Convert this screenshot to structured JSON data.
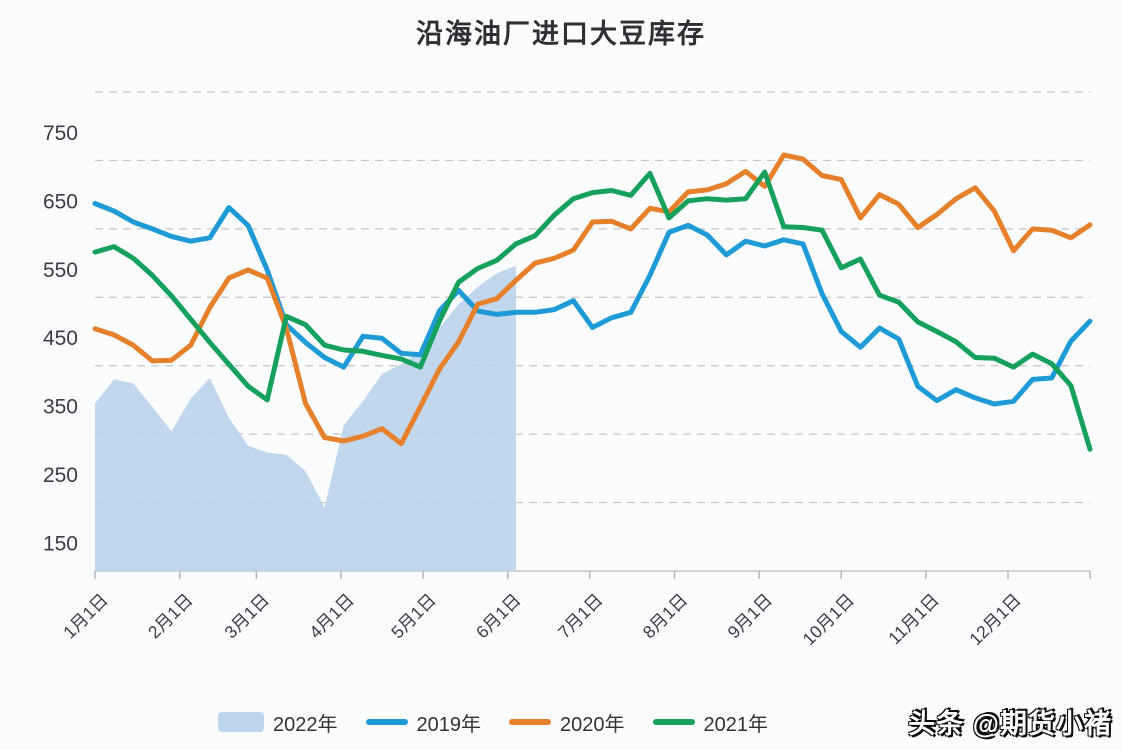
{
  "title": "沿海油厂进口大豆库存",
  "watermark": "头条 @期货小褚",
  "colors": {
    "area_2022": "#bdd5ec",
    "line_2019": "#1e9bd7",
    "line_2020": "#e6802b",
    "line_2021": "#15a15c",
    "gridline": "#c7c7c7",
    "axis_text": "#3c3c46"
  },
  "chart_data": {
    "type": "line",
    "title": "沿海油厂进口大豆库存",
    "legend_position": "bottom",
    "grid": "horizontal-dashed",
    "y_axis": {
      "min": 150,
      "max": 850,
      "tick_values": [
        150,
        250,
        350,
        450,
        550,
        650,
        750
      ]
    },
    "x_ticks": {
      "labels": [
        "1月1日",
        "2月1日",
        "3月1日",
        "4月1日",
        "5月1日",
        "6月1日",
        "7月1日",
        "8月1日",
        "9月1日",
        "10月1日",
        "11月1日",
        "12月1日"
      ],
      "days": [
        0,
        31,
        59,
        90,
        120,
        151,
        181,
        212,
        243,
        273,
        304,
        334
      ],
      "total_days": 364
    },
    "series": [
      {
        "name": "2022年",
        "style": "area",
        "color": "#bdd5ec",
        "days": [
          0,
          7,
          14,
          21,
          28,
          35,
          42,
          49,
          56,
          63,
          70,
          77,
          84,
          91,
          98,
          105,
          112,
          119,
          126,
          133,
          140,
          147,
          154
        ],
        "values": [
          395,
          430,
          424,
          390,
          354,
          402,
          432,
          374,
          333,
          323,
          320,
          296,
          243,
          363,
          398,
          438,
          452,
          472,
          505,
          540,
          565,
          585,
          596
        ]
      },
      {
        "name": "2019年",
        "style": "line",
        "color": "#1e9bd7",
        "days": [
          0,
          7,
          14,
          21,
          28,
          35,
          42,
          49,
          56,
          63,
          70,
          77,
          84,
          91,
          98,
          105,
          112,
          119,
          126,
          133,
          140,
          147,
          154,
          161,
          168,
          175,
          182,
          189,
          196,
          203,
          210,
          217,
          224,
          231,
          238,
          245,
          252,
          259,
          266,
          273,
          280,
          287,
          294,
          301,
          308,
          315,
          322,
          329,
          336,
          343,
          350,
          357,
          364
        ],
        "values": [
          687,
          676,
          660,
          650,
          639,
          632,
          637,
          681,
          655,
          590,
          510,
          484,
          462,
          448,
          493,
          490,
          468,
          466,
          530,
          560,
          530,
          525,
          528,
          528,
          532,
          545,
          506,
          520,
          528,
          582,
          645,
          655,
          641,
          612,
          632,
          625,
          634,
          628,
          555,
          500,
          477,
          505,
          489,
          420,
          399,
          415,
          403,
          394,
          398,
          430,
          432,
          486,
          515
        ]
      },
      {
        "name": "2020年",
        "style": "line",
        "color": "#e6802b",
        "days": [
          0,
          7,
          14,
          21,
          28,
          35,
          42,
          49,
          56,
          63,
          70,
          77,
          84,
          91,
          98,
          105,
          112,
          119,
          126,
          133,
          140,
          147,
          154,
          161,
          168,
          175,
          182,
          189,
          196,
          203,
          210,
          217,
          224,
          231,
          238,
          245,
          252,
          259,
          266,
          273,
          280,
          287,
          294,
          301,
          308,
          315,
          322,
          329,
          336,
          343,
          350,
          357,
          364
        ],
        "values": [
          504,
          495,
          480,
          457,
          458,
          480,
          535,
          578,
          590,
          578,
          505,
          395,
          345,
          340,
          347,
          358,
          336,
          390,
          445,
          485,
          540,
          548,
          575,
          600,
          607,
          619,
          660,
          661,
          650,
          680,
          675,
          704,
          707,
          716,
          734,
          712,
          758,
          752,
          728,
          722,
          666,
          700,
          686,
          652,
          671,
          694,
          710,
          676,
          618,
          650,
          648,
          637,
          656
        ]
      },
      {
        "name": "2021年",
        "style": "line",
        "color": "#15a15c",
        "days": [
          0,
          7,
          14,
          21,
          28,
          35,
          42,
          49,
          56,
          63,
          70,
          77,
          84,
          91,
          98,
          105,
          112,
          119,
          126,
          133,
          140,
          147,
          154,
          161,
          168,
          175,
          182,
          189,
          196,
          203,
          210,
          217,
          224,
          231,
          238,
          245,
          252,
          259,
          266,
          273,
          280,
          287,
          294,
          301,
          308,
          315,
          322,
          329,
          336,
          343,
          350,
          357,
          364
        ],
        "values": [
          616,
          624,
          607,
          582,
          552,
          518,
          484,
          452,
          420,
          400,
          522,
          510,
          480,
          473,
          471,
          465,
          460,
          448,
          515,
          572,
          592,
          604,
          628,
          640,
          670,
          694,
          703,
          706,
          699,
          731,
          666,
          691,
          694,
          692,
          694,
          733,
          653,
          652,
          648,
          593,
          606,
          553,
          543,
          514,
          500,
          485,
          462,
          461,
          448,
          467,
          453,
          421,
          328
        ]
      }
    ]
  }
}
